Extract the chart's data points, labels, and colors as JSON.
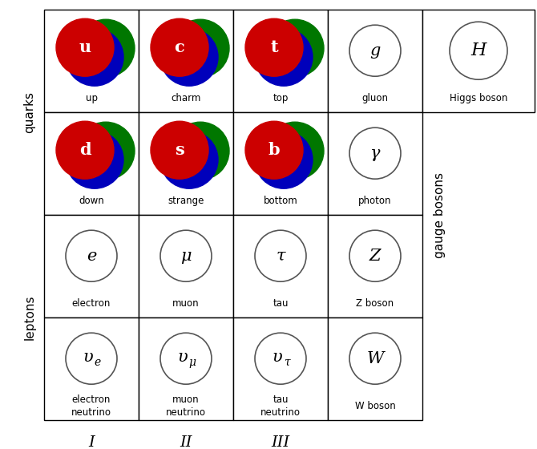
{
  "fig_width": 6.7,
  "fig_height": 5.6,
  "dpi": 100,
  "bg_color": "#ffffff",
  "quark_color_red": "#cc0000",
  "quark_color_blue": "#0000bb",
  "quark_color_green": "#007700",
  "particles": [
    {
      "row": 0,
      "col": 0,
      "symbol": "u",
      "name": "up",
      "type": "quark"
    },
    {
      "row": 0,
      "col": 1,
      "symbol": "c",
      "name": "charm",
      "type": "quark"
    },
    {
      "row": 0,
      "col": 2,
      "symbol": "t",
      "name": "top",
      "type": "quark"
    },
    {
      "row": 0,
      "col": 3,
      "symbol": "g",
      "name": "gluon",
      "type": "boson"
    },
    {
      "row": 0,
      "col": 4,
      "symbol": "H",
      "name": "Higgs boson",
      "type": "boson_wide"
    },
    {
      "row": 1,
      "col": 0,
      "symbol": "d",
      "name": "down",
      "type": "quark"
    },
    {
      "row": 1,
      "col": 1,
      "symbol": "s",
      "name": "strange",
      "type": "quark"
    },
    {
      "row": 1,
      "col": 2,
      "symbol": "b",
      "name": "bottom",
      "type": "quark"
    },
    {
      "row": 1,
      "col": 3,
      "symbol": "γ",
      "name": "photon",
      "type": "boson"
    },
    {
      "row": 2,
      "col": 0,
      "symbol": "e",
      "name": "electron",
      "type": "lepton"
    },
    {
      "row": 2,
      "col": 1,
      "symbol": "μ",
      "name": "muon",
      "type": "lepton"
    },
    {
      "row": 2,
      "col": 2,
      "symbol": "τ",
      "name": "tau",
      "type": "lepton"
    },
    {
      "row": 2,
      "col": 3,
      "symbol": "Z",
      "name": "Z boson",
      "type": "boson"
    },
    {
      "row": 3,
      "col": 0,
      "symbol": "e",
      "name": "electron\nneutrino",
      "type": "neutrino"
    },
    {
      "row": 3,
      "col": 1,
      "symbol": "μ",
      "name": "muon\nneutrino",
      "type": "neutrino"
    },
    {
      "row": 3,
      "col": 2,
      "symbol": "τ",
      "name": "tau\nneutrino",
      "type": "neutrino"
    },
    {
      "row": 3,
      "col": 3,
      "symbol": "W",
      "name": "W boson",
      "type": "boson"
    }
  ],
  "col_labels": [
    {
      "text": "I",
      "col": 0
    },
    {
      "text": "II",
      "col": 1
    },
    {
      "text": "III",
      "col": 2
    }
  ]
}
